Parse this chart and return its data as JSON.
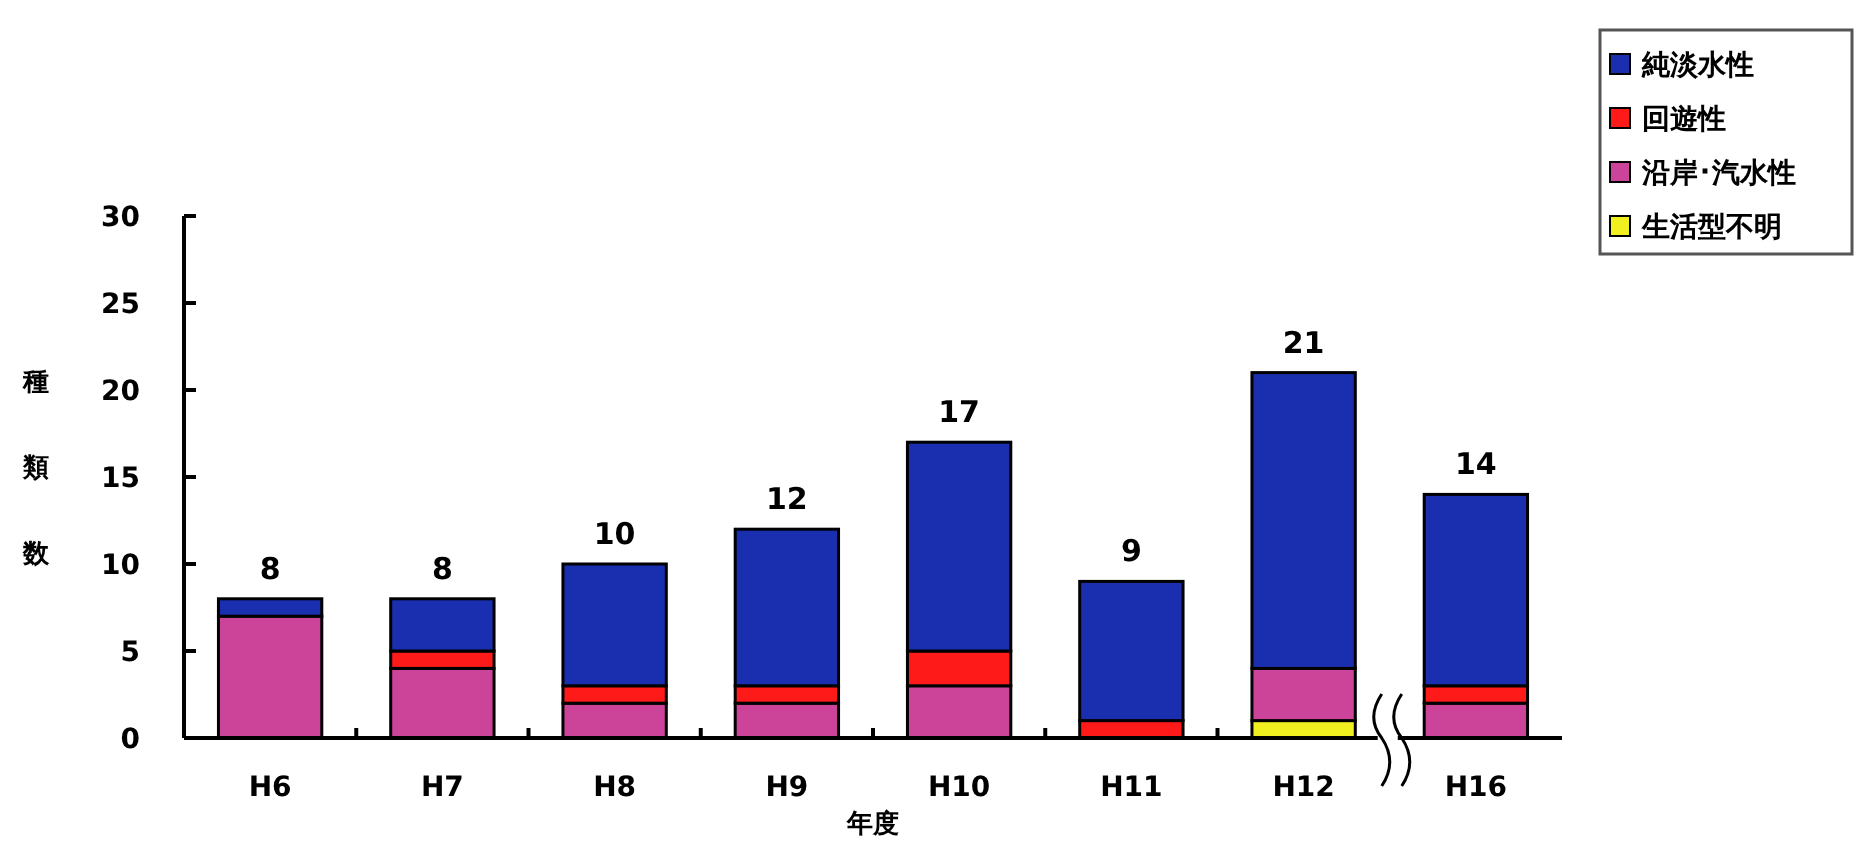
{
  "chart_data": {
    "type": "bar",
    "stacked": true,
    "xlabel": "年度",
    "ylabel": "種類数",
    "categories": [
      "H6",
      "H7",
      "H8",
      "H9",
      "H10",
      "H11",
      "H12",
      "H16"
    ],
    "series": [
      {
        "name": "生活型不明",
        "color": "#f0f020",
        "values": [
          0,
          0,
          0,
          0,
          0,
          0,
          1,
          0
        ]
      },
      {
        "name": "沿岸･汽水性",
        "color": "#cc4499",
        "values": [
          7,
          4,
          2,
          2,
          3,
          0,
          3,
          2
        ]
      },
      {
        "name": "回遊性",
        "color": "#ff1a1a",
        "values": [
          0,
          1,
          1,
          1,
          2,
          1,
          0,
          1
        ]
      },
      {
        "name": "純淡水性",
        "color": "#1a2fb0",
        "values": [
          1,
          3,
          7,
          9,
          12,
          8,
          17,
          11
        ]
      }
    ],
    "totals": [
      "8",
      "8",
      "10",
      "12",
      "17",
      "9",
      "21",
      "14"
    ],
    "ylim": [
      0,
      30
    ],
    "yticks": [
      0,
      5,
      10,
      15,
      20,
      25,
      30
    ],
    "grid": false,
    "legend": "top right"
  }
}
